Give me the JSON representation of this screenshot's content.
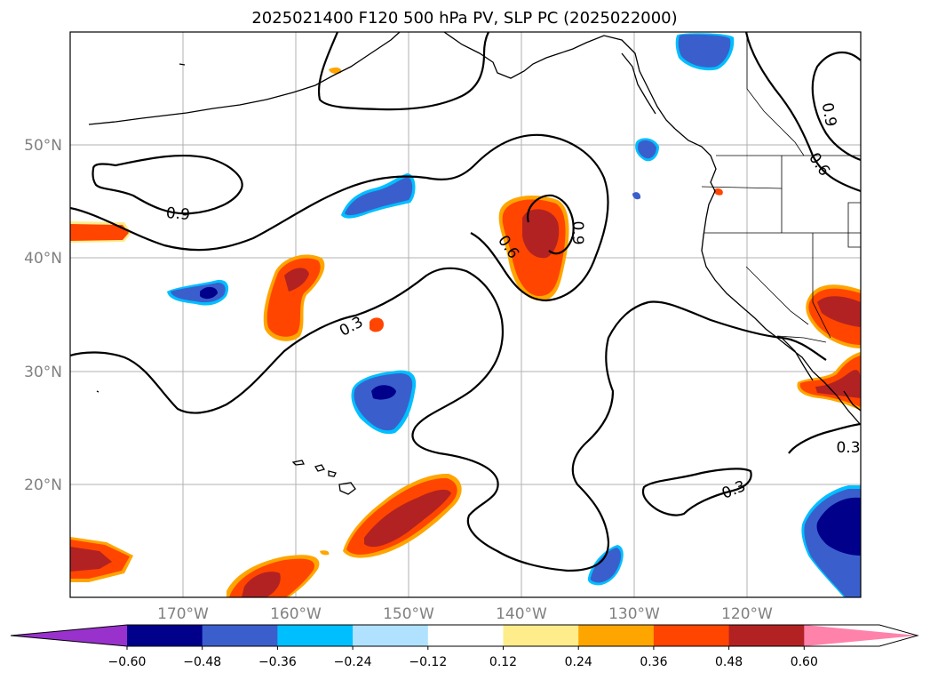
{
  "title": "2025021400 F120 500 hPa PV, SLP PC (2025022000)",
  "lat_labels": [
    "50°N",
    "40°N",
    "30°N",
    "20°N"
  ],
  "lon_labels": [
    "170°W",
    "160°W",
    "150°W",
    "140°W",
    "130°W",
    "120°W"
  ],
  "contour_labels": [
    "0.9",
    "0.6",
    "0.3",
    "0.9",
    "0.6",
    "0.3",
    "0.3",
    "0.9"
  ],
  "colorbar": {
    "ticks": [
      "−0.60",
      "−0.48",
      "−0.36",
      "−0.24",
      "−0.12",
      "0.12",
      "0.24",
      "0.36",
      "0.48",
      "0.60"
    ],
    "colors": [
      "#9932cc",
      "#00008b",
      "#3a5fcd",
      "#00bfff",
      "#b0e2ff",
      "#ffffff",
      "#ffec8b",
      "#ffa500",
      "#ff4500",
      "#b22222",
      "#ff82ab"
    ]
  },
  "palette": {
    "neg_strong": "#00008b",
    "neg_mid": "#3a5fcd",
    "neg_light": "#00bfff",
    "pos_light": "#ffa500",
    "pos_mid": "#ff4500",
    "pos_strong": "#b22222",
    "pos_pale": "#ffec8b"
  }
}
